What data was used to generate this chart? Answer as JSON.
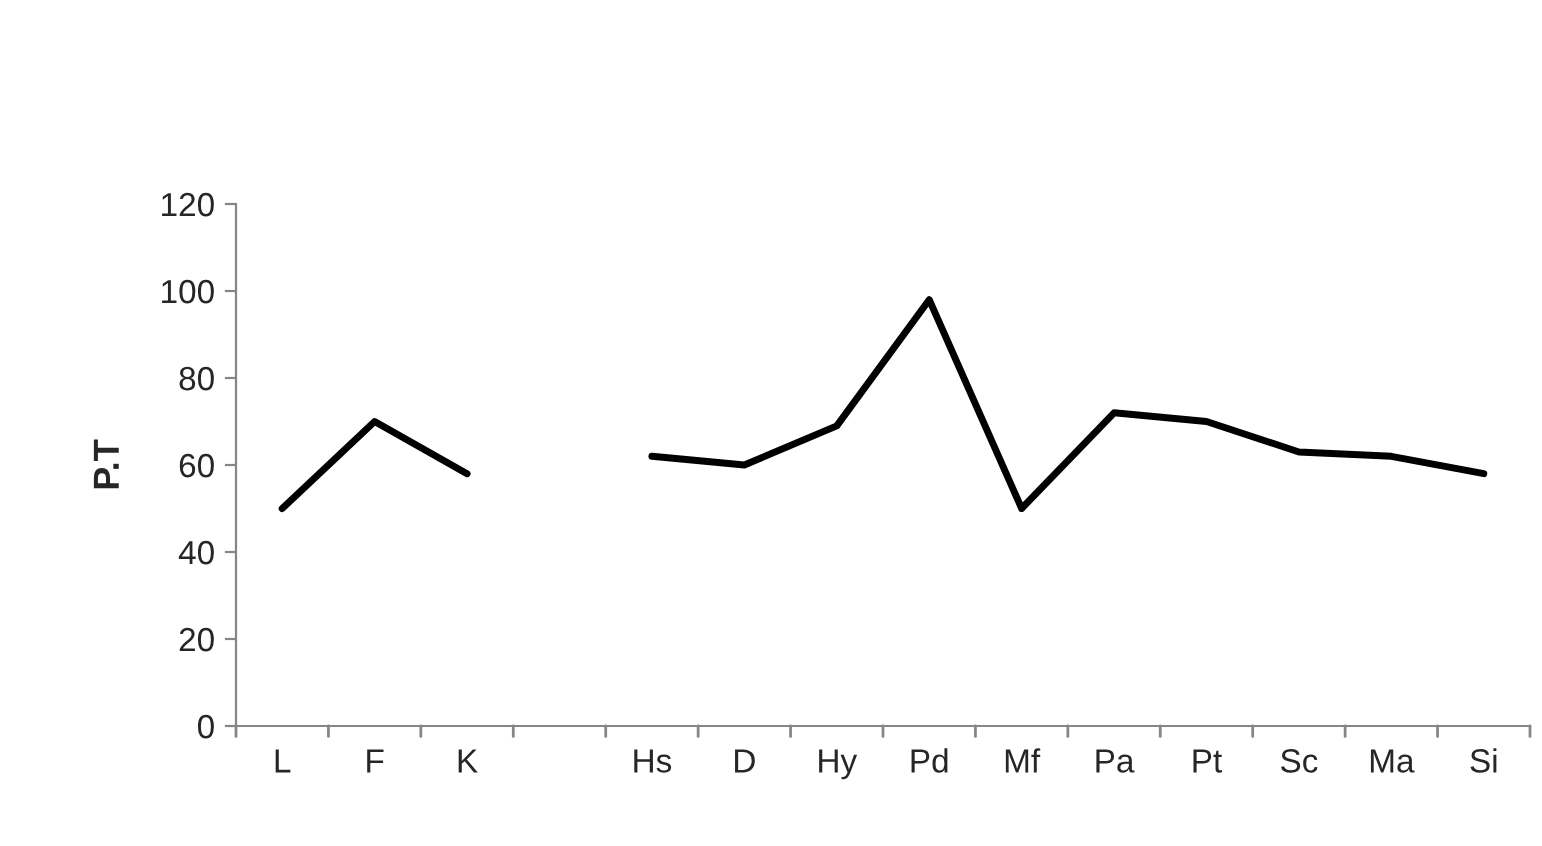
{
  "chart_data": {
    "type": "line",
    "categories": [
      "L",
      "F",
      "K",
      null,
      "Hs",
      "D",
      "Hy",
      "Pd",
      "Mf",
      "Pa",
      "Pt",
      "Sc",
      "Ma",
      "Si"
    ],
    "series": [
      {
        "color": "#000000",
        "values": [
          50,
          70,
          58,
          null,
          62,
          60,
          69,
          98,
          50,
          72,
          70,
          63,
          62,
          58
        ]
      }
    ],
    "ylabel": "P.T",
    "ylim": [
      0,
      120
    ],
    "yticks": [
      0,
      20,
      40,
      60,
      80,
      100,
      120
    ],
    "grid": false,
    "legend": false,
    "marker": "none",
    "line_style": "solid"
  }
}
